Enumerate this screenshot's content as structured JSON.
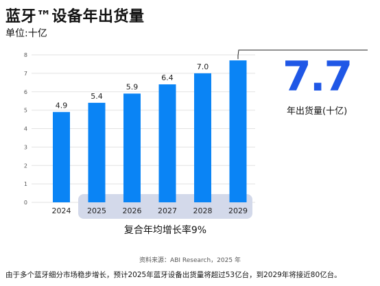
{
  "title": "蓝牙™设备年出货量",
  "unit_label": "单位:十亿",
  "highlight": {
    "value": "7.7",
    "caption": "年出货量(十亿)",
    "color": "#1f57e6"
  },
  "cagr_label": "复合年均增长率9%",
  "source": "资料来源：ABI Research，2025 年",
  "footer": "由于多个蓝牙细分市场稳步增长，预计2025年蓝牙设备出货量将超过53亿台，到2029年将接近80亿台。",
  "colors": {
    "bar": "#0a84f5",
    "cagr_band": "#d3d9ea",
    "grid": "#e2e2e2",
    "axis_text": "#555555"
  },
  "chart_data": {
    "type": "bar",
    "categories": [
      "2024",
      "2025",
      "2026",
      "2027",
      "2028",
      "2029"
    ],
    "values": [
      4.9,
      5.4,
      5.9,
      6.4,
      7.0,
      7.7
    ],
    "value_labels": [
      "4.9",
      "5.4",
      "5.9",
      "6.4",
      "7.0",
      ""
    ],
    "y_ticks": [
      0,
      1,
      2,
      3,
      4,
      5,
      6,
      7,
      8
    ],
    "ylim": [
      0,
      8
    ],
    "grid": true,
    "title": "蓝牙™设备年出货量",
    "ylabel": "单位:十亿",
    "xlabel": ""
  }
}
